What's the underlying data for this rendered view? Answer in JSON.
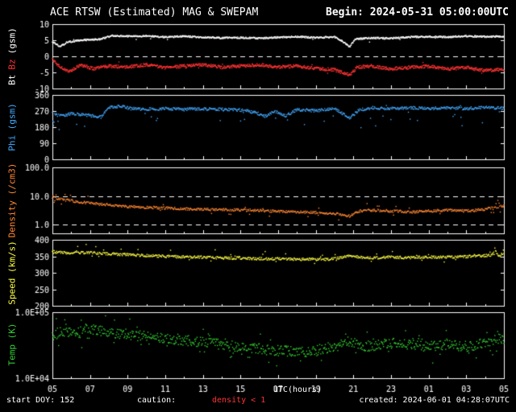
{
  "header": {
    "title": "ACE RTSW (Estimated) MAG & SWEPAM",
    "begin": "Begin: 2024-05-31 05:00:00UTC"
  },
  "footer": {
    "start_doy": "start DOY: 152",
    "caution_label": "caution:",
    "caution_value": "density < 1",
    "created": "created: 2024-06-01 04:28:07UTC"
  },
  "colors": {
    "background": "#000000",
    "axis": "#ffffff",
    "caution": "#ff3333"
  },
  "chart_data": {
    "type": "scatter",
    "title": "ACE RTSW (Estimated) MAG & SWEPAM",
    "xlabel": "UTC(hours)",
    "x": {
      "label": "UTC(hours)",
      "hours": 24,
      "tick_interval_hours": 2,
      "tick_labels": [
        "05",
        "07",
        "09",
        "11",
        "13",
        "15",
        "17",
        "19",
        "21",
        "23",
        "01",
        "03",
        "05"
      ]
    },
    "panels": [
      {
        "name": "mag",
        "ylabel_parts": [
          {
            "text": "Bt",
            "color": "#ffffff"
          },
          {
            "text": "Bz",
            "color": "#ff3333"
          },
          {
            "text": "(gsm)",
            "color": "#ffffff"
          }
        ],
        "scale": "linear",
        "ylim": [
          -10,
          10
        ],
        "yticks": [
          10,
          5,
          0,
          -5,
          -10
        ],
        "ytick_labels": [
          "10",
          "5",
          "0",
          "-5",
          "-10"
        ],
        "ref_lines": [
          0
        ],
        "series": [
          {
            "name": "Bt",
            "color": "#ffffff",
            "n": 1100,
            "jitter": 0.25,
            "outlier": {
              "prob": 0.012,
              "lo": -1.6,
              "hi": 0.6
            },
            "keyframes": [
              [
                0,
                4.6
              ],
              [
                0.4,
                3.0
              ],
              [
                0.8,
                4.4
              ],
              [
                1.5,
                5.0
              ],
              [
                2.5,
                5.3
              ],
              [
                3.2,
                6.4
              ],
              [
                4,
                6.2
              ],
              [
                5,
                6.3
              ],
              [
                6,
                6.0
              ],
              [
                7,
                6.2
              ],
              [
                8,
                5.9
              ],
              [
                9,
                5.7
              ],
              [
                10,
                5.8
              ],
              [
                11,
                5.6
              ],
              [
                12,
                5.9
              ],
              [
                13,
                6.1
              ],
              [
                14,
                5.8
              ],
              [
                15,
                6.0
              ],
              [
                15.5,
                4.4
              ],
              [
                15.8,
                2.9
              ],
              [
                16.1,
                5.4
              ],
              [
                17,
                5.7
              ],
              [
                18,
                5.6
              ],
              [
                19,
                6.0
              ],
              [
                20,
                6.1
              ],
              [
                21,
                6.0
              ],
              [
                22,
                6.3
              ],
              [
                23,
                6.1
              ],
              [
                24,
                6.2
              ]
            ]
          },
          {
            "name": "Bz",
            "color": "#ff3333",
            "n": 1100,
            "jitter": 0.5,
            "outlier": {
              "prob": 0.02,
              "lo": -1.5,
              "hi": 1.5
            },
            "keyframes": [
              [
                0,
                -0.8
              ],
              [
                0.4,
                -3.2
              ],
              [
                0.9,
                -4.8
              ],
              [
                1.5,
                -2.8
              ],
              [
                2.2,
                -3.8
              ],
              [
                3,
                -3.0
              ],
              [
                4,
                -3.4
              ],
              [
                5,
                -2.6
              ],
              [
                6,
                -3.6
              ],
              [
                7,
                -3.0
              ],
              [
                8,
                -2.6
              ],
              [
                9,
                -3.4
              ],
              [
                10,
                -3.0
              ],
              [
                11,
                -2.6
              ],
              [
                12,
                -3.4
              ],
              [
                13,
                -3.0
              ],
              [
                14,
                -3.8
              ],
              [
                15,
                -4.2
              ],
              [
                15.8,
                -5.8
              ],
              [
                16.2,
                -3.4
              ],
              [
                17,
                -3.0
              ],
              [
                18,
                -3.9
              ],
              [
                19,
                -3.4
              ],
              [
                20,
                -3.1
              ],
              [
                21,
                -3.9
              ],
              [
                22,
                -3.5
              ],
              [
                23,
                -4.4
              ],
              [
                24,
                -4.0
              ]
            ]
          }
        ]
      },
      {
        "name": "phi",
        "ylabel": "Phi (gsm)",
        "color": "#44aaff",
        "scale": "linear",
        "ylim": [
          0,
          360
        ],
        "yticks": [
          360,
          270,
          180,
          90,
          0
        ],
        "ytick_labels": [
          "360",
          "270",
          "180",
          "90",
          "0"
        ],
        "ref_lines": [],
        "series": [
          {
            "name": "Phi",
            "color": "#44aaff",
            "n": 800,
            "jitter": 8,
            "outlier": {
              "prob": 0.05,
              "lo": -95,
              "hi": 15,
              "edge_boost": {
                "window": 0.8,
                "factor": 3
              }
            },
            "keyframes": [
              [
                0,
                258
              ],
              [
                0.5,
                242
              ],
              [
                1,
                255
              ],
              [
                1.8,
                248
              ],
              [
                2.6,
                236
              ],
              [
                3,
                288
              ],
              [
                3.6,
                298
              ],
              [
                4.2,
                283
              ],
              [
                5,
                280
              ],
              [
                6,
                284
              ],
              [
                7,
                279
              ],
              [
                8,
                282
              ],
              [
                9,
                279
              ],
              [
                10,
                276
              ],
              [
                10.8,
                262
              ],
              [
                11.3,
                240
              ],
              [
                11.8,
                268
              ],
              [
                12.4,
                244
              ],
              [
                13,
                278
              ],
              [
                14,
                272
              ],
              [
                15,
                283
              ],
              [
                15.8,
                232
              ],
              [
                16.3,
                276
              ],
              [
                17,
                288
              ],
              [
                18,
                283
              ],
              [
                19,
                289
              ],
              [
                20,
                284
              ],
              [
                21,
                288
              ],
              [
                22,
                284
              ],
              [
                23,
                290
              ],
              [
                24,
                286
              ]
            ]
          }
        ]
      },
      {
        "name": "density",
        "ylabel": "Density (/cm3)",
        "color": "#ff8833",
        "scale": "log",
        "ylim": [
          0.5,
          100
        ],
        "yticks": [
          100,
          10,
          1
        ],
        "ytick_labels": [
          "100.0",
          "10.0",
          "1.0"
        ],
        "ref_lines": [
          10,
          1
        ],
        "series": [
          {
            "name": "Density",
            "color": "#ff8833",
            "n": 750,
            "jitter_log": 0.045,
            "outlier": {
              "prob": 0.05,
              "log": 0.22,
              "edge_boost": {
                "window": 0.8,
                "factor": 5
              }
            },
            "keyframes": [
              [
                0,
                8.5
              ],
              [
                0.7,
                7.2
              ],
              [
                1.5,
                6.2
              ],
              [
                2.5,
                5.2
              ],
              [
                3.5,
                4.6
              ],
              [
                4.5,
                4.1
              ],
              [
                5.5,
                3.9
              ],
              [
                6.5,
                3.7
              ],
              [
                7.5,
                3.5
              ],
              [
                8.5,
                3.4
              ],
              [
                9.5,
                3.3
              ],
              [
                10.5,
                3.2
              ],
              [
                11.5,
                3.0
              ],
              [
                12.5,
                2.9
              ],
              [
                13.5,
                2.7
              ],
              [
                14.5,
                2.6
              ],
              [
                15.3,
                2.3
              ],
              [
                15.8,
                2.0
              ],
              [
                16.3,
                3.0
              ],
              [
                17,
                3.2
              ],
              [
                18,
                3.0
              ],
              [
                19,
                2.8
              ],
              [
                20,
                3.0
              ],
              [
                21,
                3.2
              ],
              [
                22,
                3.0
              ],
              [
                23,
                3.4
              ],
              [
                23.6,
                4.2
              ],
              [
                24,
                4.6
              ]
            ]
          }
        ]
      },
      {
        "name": "speed",
        "ylabel": "Speed (km/s)",
        "color": "#ffff44",
        "scale": "linear",
        "ylim": [
          200,
          400
        ],
        "yticks": [
          400,
          350,
          300,
          250,
          200
        ],
        "ytick_labels": [
          "400",
          "350",
          "300",
          "250",
          "200"
        ],
        "ref_lines": [],
        "series": [
          {
            "name": "Speed",
            "color": "#ffff44",
            "n": 750,
            "jitter": 4,
            "outlier": {
              "prob": 0.05,
              "lo": -12,
              "hi": 22,
              "edge_boost": {
                "window": 0.8,
                "factor": 5
              }
            },
            "keyframes": [
              [
                0,
                364
              ],
              [
                1,
                360
              ],
              [
                2,
                361
              ],
              [
                3,
                357
              ],
              [
                4,
                355
              ],
              [
                5,
                352
              ],
              [
                6,
                350
              ],
              [
                7,
                348
              ],
              [
                8,
                347
              ],
              [
                9,
                345
              ],
              [
                10,
                344
              ],
              [
                11,
                343
              ],
              [
                12,
                342
              ],
              [
                13,
                341
              ],
              [
                14,
                340
              ],
              [
                15,
                342
              ],
              [
                15.8,
                351
              ],
              [
                16.3,
                347
              ],
              [
                17,
                345
              ],
              [
                18,
                347
              ],
              [
                19,
                346
              ],
              [
                20,
                348
              ],
              [
                21,
                347
              ],
              [
                22,
                349
              ],
              [
                23,
                352
              ],
              [
                24,
                356
              ]
            ]
          }
        ]
      },
      {
        "name": "temp",
        "ylabel": "Temp (K)",
        "color": "#33cc33",
        "scale": "log",
        "ylim": [
          10000,
          100000
        ],
        "yticks": [
          100000,
          10000
        ],
        "ytick_labels": [
          "1.0E+05",
          "1.0E+04"
        ],
        "ref_lines": [],
        "series": [
          {
            "name": "Temp",
            "color": "#33cc33",
            "n": 800,
            "jitter_log": 0.08,
            "outlier": {
              "prob": 0.1,
              "log": 0.2,
              "edge_boost": {
                "window": 0.8,
                "factor": 3
              }
            },
            "keyframes": [
              [
                0,
                42000
              ],
              [
                0.6,
                52000
              ],
              [
                1.2,
                46000
              ],
              [
                2,
                56000
              ],
              [
                3,
                50000
              ],
              [
                4,
                46000
              ],
              [
                5,
                43000
              ],
              [
                6,
                40000
              ],
              [
                7,
                38000
              ],
              [
                8,
                35000
              ],
              [
                9,
                32000
              ],
              [
                10,
                30000
              ],
              [
                11,
                28000
              ],
              [
                12,
                26000
              ],
              [
                13,
                25000
              ],
              [
                14,
                26000
              ],
              [
                15,
                30000
              ],
              [
                15.8,
                36000
              ],
              [
                16.3,
                32000
              ],
              [
                17,
                30000
              ],
              [
                18,
                34000
              ],
              [
                19,
                32000
              ],
              [
                20,
                30000
              ],
              [
                21,
                33000
              ],
              [
                22,
                30000
              ],
              [
                23,
                35000
              ],
              [
                24,
                40000
              ]
            ]
          }
        ]
      }
    ]
  }
}
